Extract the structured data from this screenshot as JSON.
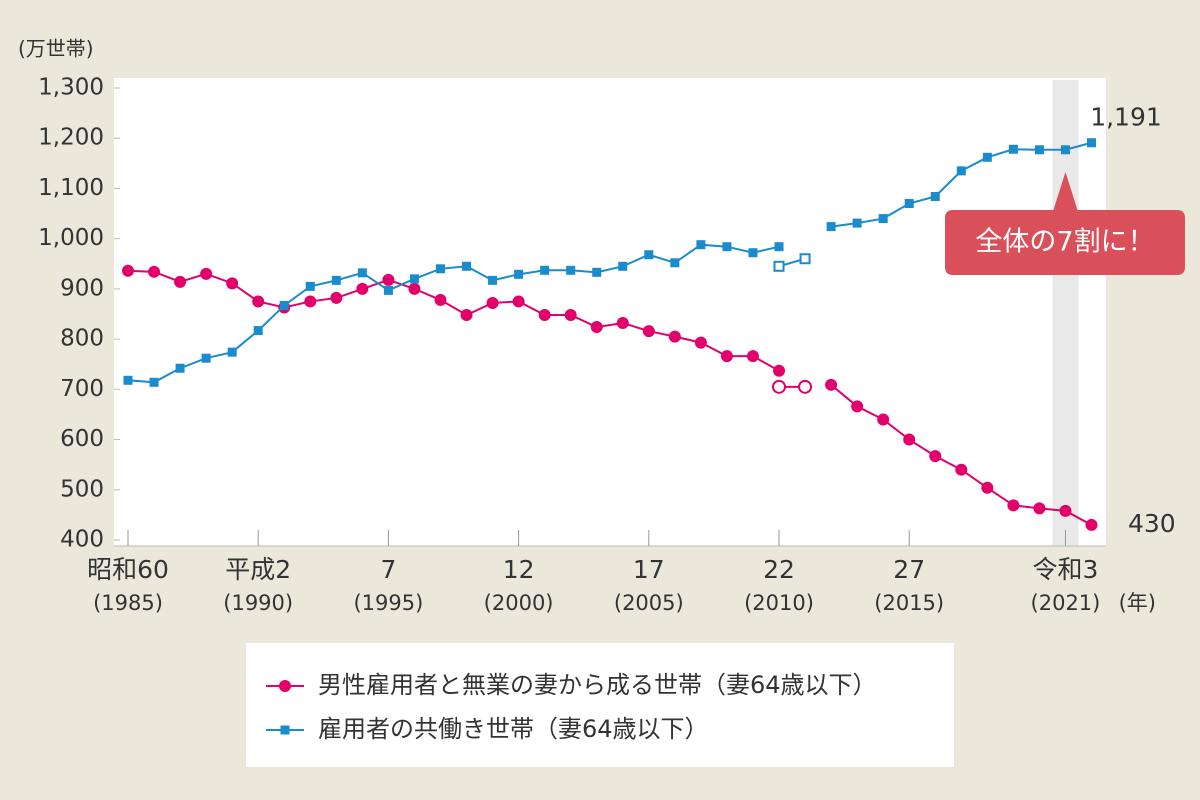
{
  "chart_data": {
    "type": "line",
    "ylabel": "(万世帯)",
    "xlabel": "(年)",
    "x": [
      1985,
      1986,
      1987,
      1988,
      1989,
      1990,
      1991,
      1992,
      1993,
      1994,
      1995,
      1996,
      1997,
      1998,
      1999,
      2000,
      2001,
      2002,
      2003,
      2004,
      2005,
      2006,
      2007,
      2008,
      2009,
      2010,
      2011,
      2012,
      2013,
      2014,
      2015,
      2016,
      2017,
      2018,
      2019,
      2020,
      2021,
      2022
    ],
    "series": [
      {
        "name": "男性雇用者と無業の妻から成る世帯（妻64歳以下）",
        "color": "#e2006b",
        "marker": "circle",
        "values": [
          936,
          934,
          914,
          930,
          911,
          875,
          863,
          875,
          882,
          900,
          918,
          900,
          878,
          848,
          872,
          875,
          848,
          848,
          824,
          832,
          816,
          805,
          793,
          766,
          766,
          737,
          null,
          709,
          666,
          640,
          600,
          567,
          540,
          504,
          469,
          463,
          458,
          430
        ],
        "value_labels": [
          null,
          null,
          null,
          null,
          null,
          null,
          null,
          null,
          null,
          null,
          null,
          null,
          null,
          null,
          null,
          null,
          null,
          null,
          null,
          null,
          null,
          null,
          null,
          null,
          null,
          null,
          null,
          null,
          null,
          null,
          null,
          null,
          null,
          null,
          null,
          null,
          null,
          "430"
        ]
      },
      {
        "name": "雇用者の共働き世帯（妻64歳以下）",
        "color": "#1a8bcc",
        "marker": "square",
        "values": [
          718,
          714,
          742,
          762,
          774,
          817,
          867,
          905,
          917,
          932,
          897,
          920,
          940,
          945,
          917,
          929,
          937,
          937,
          933,
          945,
          968,
          952,
          988,
          984,
          972,
          984,
          null,
          1024,
          1031,
          1040,
          1070,
          1084,
          1135,
          1162,
          1178,
          1177,
          1177,
          1191
        ],
        "value_labels": [
          null,
          null,
          null,
          null,
          null,
          null,
          null,
          null,
          null,
          null,
          null,
          null,
          null,
          null,
          null,
          null,
          null,
          null,
          null,
          null,
          null,
          null,
          null,
          null,
          null,
          null,
          null,
          null,
          null,
          null,
          null,
          null,
          null,
          null,
          null,
          null,
          null,
          "1,191"
        ]
      },
      {
        "color": "#e2006b",
        "marker": "circle-open",
        "values": [
          null,
          null,
          null,
          null,
          null,
          null,
          null,
          null,
          null,
          null,
          null,
          null,
          null,
          null,
          null,
          null,
          null,
          null,
          null,
          null,
          null,
          null,
          null,
          null,
          null,
          705,
          705,
          null,
          null,
          null,
          null,
          null,
          null,
          null,
          null,
          null,
          null,
          null
        ]
      },
      {
        "color": "#1a8bcc",
        "marker": "square-open",
        "values": [
          null,
          null,
          null,
          null,
          null,
          null,
          null,
          null,
          null,
          null,
          null,
          null,
          null,
          null,
          null,
          null,
          null,
          null,
          null,
          null,
          null,
          null,
          null,
          null,
          null,
          945,
          960,
          null,
          null,
          null,
          null,
          null,
          null,
          null,
          null,
          null,
          null,
          null
        ]
      }
    ],
    "xlim": [
      1985,
      2022
    ],
    "xticks": [
      {
        "value": 1985,
        "label": "昭和60",
        "label2": "(1985)"
      },
      {
        "value": 1990,
        "label": "平成2",
        "label2": "(1990)"
      },
      {
        "value": 1995,
        "label": "7",
        "label2": "(1995)"
      },
      {
        "value": 2000,
        "label": "12",
        "label2": "(2000)"
      },
      {
        "value": 2005,
        "label": "17",
        "label2": "(2005)"
      },
      {
        "value": 2010,
        "label": "22",
        "label2": "(2010)"
      },
      {
        "value": 2015,
        "label": "27",
        "label2": "(2015)"
      },
      {
        "value": 2021,
        "label": "令和3",
        "label2": "(2021)"
      }
    ],
    "ylim": [
      400,
      1300
    ],
    "yticks": [
      400,
      500,
      600,
      700,
      800,
      900,
      {
        "value": 1000,
        "label": "1,000"
      },
      {
        "value": 1100,
        "label": "1,100"
      },
      {
        "value": 1200,
        "label": "1,200"
      },
      {
        "value": 1300,
        "label": "1,300"
      }
    ],
    "highlight_x": 2021,
    "annotation": "全体の7割に！"
  }
}
